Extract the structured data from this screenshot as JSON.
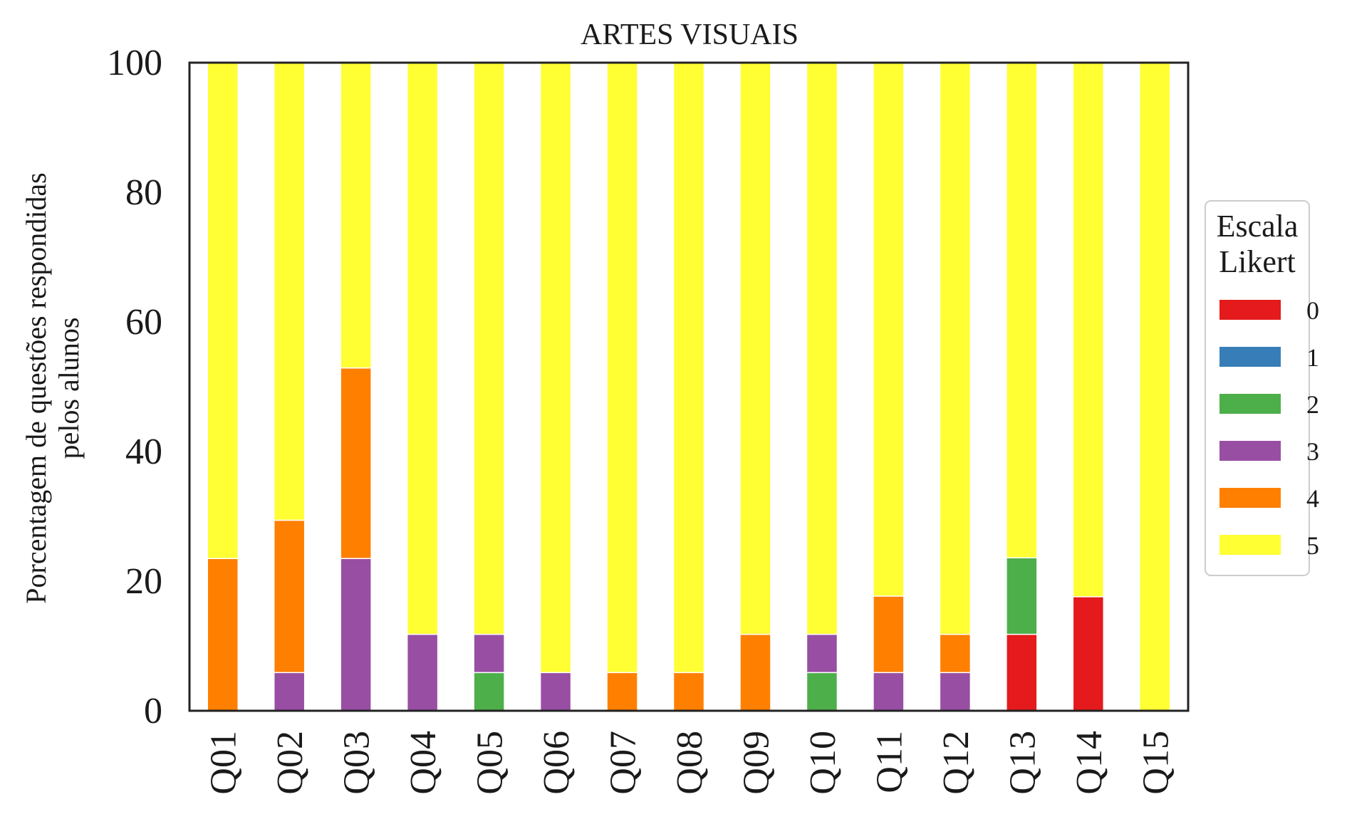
{
  "chart_data": {
    "type": "bar",
    "stacked": true,
    "title": "ARTES VISUAIS",
    "ylabel_lines": [
      "Porcentagem de questões respondidas",
      "pelos alunos"
    ],
    "xlabel": "",
    "ylim": [
      0,
      100
    ],
    "yticks": [
      "0",
      "20",
      "40",
      "60",
      "80",
      "100"
    ],
    "categories": [
      "Q01",
      "Q02",
      "Q03",
      "Q04",
      "Q05",
      "Q06",
      "Q07",
      "Q08",
      "Q09",
      "Q10",
      "Q11",
      "Q12",
      "Q13",
      "Q14",
      "Q15"
    ],
    "legend": {
      "title_lines": [
        "Escala",
        "Likert"
      ],
      "placement": "right"
    },
    "series": [
      {
        "name": "0",
        "color": "#e41a1c",
        "values": [
          0,
          0,
          0,
          0,
          0,
          0,
          0,
          0,
          0,
          0,
          0,
          0,
          11.8,
          17.6,
          0
        ]
      },
      {
        "name": "1",
        "color": "#377eb8",
        "values": [
          0,
          0,
          0,
          0,
          0,
          0,
          0,
          0,
          0,
          0,
          0,
          0,
          0,
          0,
          0
        ]
      },
      {
        "name": "2",
        "color": "#4daf4a",
        "values": [
          0,
          0,
          0,
          0,
          5.9,
          0,
          0,
          0,
          0,
          5.9,
          0,
          0,
          11.8,
          0,
          0
        ]
      },
      {
        "name": "3",
        "color": "#984ea3",
        "values": [
          0,
          5.9,
          23.5,
          11.8,
          5.9,
          5.9,
          0,
          0,
          0,
          5.9,
          5.9,
          5.9,
          0,
          0,
          0
        ]
      },
      {
        "name": "4",
        "color": "#ff7f00",
        "values": [
          23.5,
          23.5,
          29.4,
          0,
          0,
          0,
          5.9,
          5.9,
          11.8,
          0,
          11.8,
          5.9,
          0,
          0,
          0
        ]
      },
      {
        "name": "5",
        "color": "#ffff33",
        "values": [
          76.5,
          70.6,
          47.1,
          88.2,
          88.2,
          94.1,
          94.1,
          94.1,
          88.2,
          88.2,
          82.3,
          88.2,
          76.4,
          82.4,
          100
        ]
      }
    ]
  }
}
